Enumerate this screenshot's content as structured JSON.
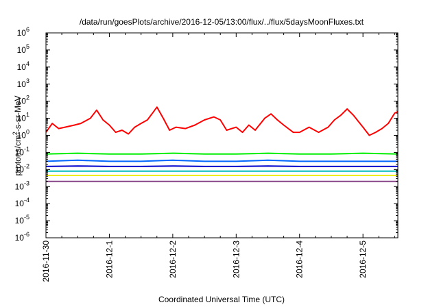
{
  "chart_data": {
    "type": "line",
    "title": "/data/run/goesPlots/archive/2016-12-05/13:00/flux/../flux/5daysMoonFluxes.txt",
    "xlabel": "Coordinated Universal Time (UTC)",
    "ylabel": "protons/cm²-s-sr-MeV",
    "yscale": "log",
    "ylim": [
      1e-06,
      1000000.0
    ],
    "x_days_range": [
      0,
      5.55
    ],
    "x_ticks": [
      "2016-11-30",
      "2016-12-1",
      "2016-12-2",
      "2016-12-3",
      "2016-12-4",
      "2016-12-5"
    ],
    "y_ticks": [
      "-6",
      "-5",
      "-4",
      "-3",
      "-2",
      "-1",
      "0",
      "1",
      "2",
      "3",
      "4",
      "5",
      "6"
    ],
    "grid": false,
    "legend": "none",
    "series": [
      {
        "color": "#ff0000",
        "x": [
          0.0,
          0.1,
          0.2,
          0.3,
          0.45,
          0.55,
          0.7,
          0.8,
          0.9,
          1.0,
          1.1,
          1.2,
          1.3,
          1.4,
          1.5,
          1.6,
          1.7,
          1.75,
          1.85,
          1.95,
          2.05,
          2.2,
          2.35,
          2.5,
          2.65,
          2.75,
          2.85,
          3.0,
          3.1,
          3.2,
          3.3,
          3.45,
          3.55,
          3.65,
          3.75,
          3.9,
          4.0,
          4.15,
          4.3,
          4.45,
          4.55,
          4.65,
          4.75,
          4.85,
          5.0,
          5.1,
          5.2,
          5.3,
          5.4,
          5.5,
          5.55
        ],
        "values": [
          1.5,
          5,
          2.5,
          3,
          4,
          5,
          10,
          30,
          8,
          4,
          1.5,
          2,
          1.2,
          3,
          5,
          8,
          25,
          45,
          10,
          2,
          3,
          2.5,
          4,
          8,
          12,
          8,
          2,
          3,
          1.5,
          4,
          2,
          10,
          18,
          8,
          4,
          1.5,
          1.5,
          3,
          1.5,
          3,
          8,
          15,
          35,
          15,
          3,
          1,
          1.5,
          2.5,
          5,
          20,
          25
        ]
      },
      {
        "color": "#00ee00",
        "x": [
          0.0,
          0.5,
          1.0,
          1.5,
          2.0,
          2.5,
          3.0,
          3.5,
          4.0,
          4.5,
          5.0,
          5.55
        ],
        "values": [
          0.08,
          0.09,
          0.08,
          0.08,
          0.09,
          0.08,
          0.08,
          0.09,
          0.08,
          0.08,
          0.09,
          0.08
        ]
      },
      {
        "color": "#0066ff",
        "x": [
          0.0,
          0.5,
          1.0,
          1.5,
          2.0,
          2.5,
          3.0,
          3.5,
          4.0,
          4.5,
          5.0,
          5.55
        ],
        "values": [
          0.03,
          0.035,
          0.03,
          0.03,
          0.035,
          0.03,
          0.03,
          0.035,
          0.03,
          0.03,
          0.03,
          0.03
        ]
      },
      {
        "color": "#0000cc",
        "x": [
          0.0,
          0.5,
          1.0,
          1.5,
          2.0,
          2.5,
          3.0,
          3.5,
          4.0,
          4.5,
          5.0,
          5.55
        ],
        "values": [
          0.015,
          0.016,
          0.015,
          0.015,
          0.016,
          0.015,
          0.015,
          0.016,
          0.015,
          0.015,
          0.015,
          0.015
        ]
      },
      {
        "color": "#00bbbb",
        "x": [
          0.0,
          0.5,
          1.0,
          1.5,
          2.0,
          2.5,
          3.0,
          3.5,
          4.0,
          4.5,
          5.0,
          5.55
        ],
        "values": [
          0.008,
          0.008,
          0.008,
          0.008,
          0.008,
          0.008,
          0.008,
          0.008,
          0.008,
          0.008,
          0.008,
          0.008
        ]
      },
      {
        "color": "#eeee00",
        "x": [
          0.0,
          0.5,
          1.0,
          1.5,
          2.0,
          2.5,
          3.0,
          3.5,
          4.0,
          4.5,
          5.0,
          5.55
        ],
        "values": [
          0.0045,
          0.0045,
          0.0045,
          0.0045,
          0.0045,
          0.0045,
          0.0045,
          0.0045,
          0.0045,
          0.0045,
          0.0045,
          0.0045
        ]
      },
      {
        "color": "#884488",
        "x": [
          0.0,
          0.5,
          1.0,
          1.5,
          2.0,
          2.5,
          3.0,
          3.5,
          4.0,
          4.5,
          5.0,
          5.55
        ],
        "values": [
          0.002,
          0.002,
          0.002,
          0.002,
          0.002,
          0.002,
          0.002,
          0.002,
          0.002,
          0.002,
          0.002,
          0.002
        ]
      }
    ]
  }
}
